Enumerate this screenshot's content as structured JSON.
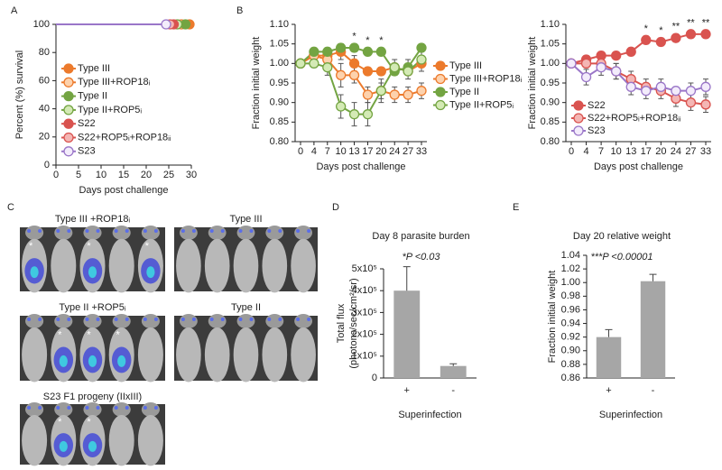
{
  "chart_data": [
    {
      "type": "line",
      "panel": "A",
      "ylabel": "Percent (%) survival",
      "xlabel": "Days post challenge",
      "xlim": [
        0,
        30
      ],
      "xticks": [
        0,
        5,
        10,
        15,
        20,
        25,
        30
      ],
      "ylim": [
        0,
        100
      ],
      "yticks": [
        0,
        20,
        40,
        60,
        80,
        100
      ],
      "markers": "last",
      "legend": "lower left",
      "series": [
        {
          "name": "Type III",
          "color": "#ec7a2c",
          "edgecolor": "#ec7a2c",
          "x": [
            0,
            29.6
          ],
          "values": [
            100,
            100
          ]
        },
        {
          "name": "Type III+ROP18ᵢ",
          "color": "#fdd2ad",
          "edgecolor": "#ec7a2c",
          "x": [
            0,
            27.8
          ],
          "values": [
            100,
            100
          ]
        },
        {
          "name": "Type II",
          "color": "#73a442",
          "edgecolor": "#73a442",
          "x": [
            0,
            28.7
          ],
          "values": [
            100,
            100
          ]
        },
        {
          "name": "Type II+ROP5ᵢ",
          "color": "#d4eab5",
          "edgecolor": "#73a442",
          "x": [
            0,
            26.9
          ],
          "values": [
            100,
            100
          ]
        },
        {
          "name": "S22",
          "color": "#d9534f",
          "edgecolor": "#d9534f",
          "x": [
            0,
            26.1
          ],
          "values": [
            100,
            100
          ]
        },
        {
          "name": "S22+ROP5ᵢ+ROP18ᵢᵢ",
          "color": "#f4b6b4",
          "edgecolor": "#d9534f",
          "x": [
            0,
            25.3
          ],
          "values": [
            100,
            100
          ]
        },
        {
          "name": "S23",
          "color": "#f3ecfb",
          "edgecolor": "#9a76c8",
          "x": [
            0,
            24.4
          ],
          "values": [
            100,
            100
          ]
        }
      ]
    },
    {
      "type": "line",
      "panel": "B",
      "ylabel": "Fraction initial weight",
      "xlabel": "Days post challenge",
      "categories": [
        "0",
        "4",
        "7",
        "10",
        "13",
        "17",
        "20",
        "24",
        "27",
        "33"
      ],
      "ylim": [
        0.8,
        1.1
      ],
      "yticks": [
        {
          "value": 0.8,
          "label": "0.80"
        },
        0.85,
        {
          "value": 0.9,
          "label": "0.90"
        },
        0.95,
        {
          "value": 1,
          "label": "1.00"
        },
        1.05,
        {
          "value": 1.1,
          "label": "1.10"
        }
      ],
      "markers": "all",
      "legend": "right",
      "annotations": [
        {
          "x": "13",
          "text": "*"
        },
        {
          "x": "17",
          "text": "*"
        },
        {
          "x": "20",
          "text": "*"
        }
      ],
      "series": [
        {
          "name": "Type III",
          "color": "#ec7a2c",
          "edgecolor": "#ec7a2c",
          "values": [
            1.0,
            1.02,
            1.02,
            1.03,
            1.0,
            0.98,
            0.98,
            0.99,
            0.98,
            1.0
          ],
          "errors": [
            0.01,
            0.01,
            0.01,
            0.02,
            0.02,
            0.01,
            0.01,
            0.01,
            0.01,
            0.02
          ]
        },
        {
          "name": "Type III+ROP18ᵢ",
          "color": "#fdd2ad",
          "edgecolor": "#ec7a2c",
          "values": [
            1.0,
            1.02,
            1.01,
            0.97,
            0.97,
            0.92,
            0.93,
            0.92,
            0.92,
            0.93
          ],
          "errors": [
            0.01,
            0.01,
            0.02,
            0.03,
            0.02,
            0.02,
            0.02,
            0.02,
            0.02,
            0.02
          ]
        },
        {
          "name": "Type II",
          "color": "#73a442",
          "edgecolor": "#73a442",
          "values": [
            1.0,
            1.03,
            1.03,
            1.04,
            1.04,
            1.03,
            1.03,
            0.98,
            0.99,
            1.04
          ],
          "errors": [
            0.01,
            0.01,
            0.01,
            0.01,
            0.01,
            0.01,
            0.01,
            0.01,
            0.02,
            0.01
          ]
        },
        {
          "name": "Type II+ROP5ᵢ",
          "color": "#d4eab5",
          "edgecolor": "#73a442",
          "values": [
            1.0,
            1.0,
            0.99,
            0.89,
            0.87,
            0.87,
            0.93,
            0.99,
            0.98,
            1.01
          ],
          "errors": [
            0.01,
            0.01,
            0.02,
            0.03,
            0.03,
            0.03,
            0.03,
            0.02,
            0.02,
            0.02
          ]
        }
      ]
    },
    {
      "type": "line",
      "ylabel": "Fraction initial weight",
      "xlabel": "Days post challenge",
      "categories": [
        "0",
        "4",
        "7",
        "10",
        "13",
        "17",
        "20",
        "24",
        "27",
        "33"
      ],
      "ylim": [
        0.8,
        1.1
      ],
      "yticks": [
        {
          "value": 0.8,
          "label": "0.80"
        },
        0.85,
        {
          "value": 0.9,
          "label": "0.90"
        },
        0.95,
        {
          "value": 1,
          "label": "1.00"
        },
        1.05,
        {
          "value": 1.1,
          "label": "1.10"
        }
      ],
      "markers": "all",
      "legend": "lower left",
      "annotations": [
        {
          "x": "17",
          "text": "*"
        },
        {
          "x": "20",
          "text": "*"
        },
        {
          "x": "24",
          "text": "**"
        },
        {
          "x": "27",
          "text": "**"
        },
        {
          "x": "33",
          "text": "**"
        }
      ],
      "series": [
        {
          "name": "S22",
          "color": "#d9534f",
          "edgecolor": "#d9534f",
          "values": [
            1.0,
            1.01,
            1.02,
            1.02,
            1.03,
            1.06,
            1.055,
            1.065,
            1.075,
            1.075
          ],
          "errors": [
            0.01,
            0.01,
            0.01,
            0.01,
            0.01,
            0.01,
            0.01,
            0.01,
            0.01,
            0.01
          ]
        },
        {
          "name": "S22+ROP5ᵢ+ROP18ᵢᵢ",
          "color": "#f4b6b4",
          "edgecolor": "#d9534f",
          "values": [
            1.0,
            1.0,
            1.0,
            0.98,
            0.96,
            0.94,
            0.93,
            0.91,
            0.9,
            0.895
          ],
          "errors": [
            0.01,
            0.01,
            0.02,
            0.02,
            0.02,
            0.02,
            0.02,
            0.02,
            0.02,
            0.02
          ]
        },
        {
          "name": "S23",
          "color": "#f3ecfb",
          "edgecolor": "#9a76c8",
          "values": [
            1.0,
            0.965,
            0.99,
            0.98,
            0.94,
            0.93,
            0.94,
            0.93,
            0.93,
            0.94
          ],
          "errors": [
            0.01,
            0.02,
            0.02,
            0.02,
            0.02,
            0.02,
            0.02,
            0.01,
            0.02,
            0.02
          ]
        }
      ]
    },
    {
      "type": "bar",
      "panel": "D",
      "title": "Day 8 parasite burden",
      "annotation": "*P <0.03",
      "ylabel": [
        "Total flux",
        "(photons/sec/cm²/sr)"
      ],
      "xlabel": "Superinfection",
      "categories": [
        "+",
        "-"
      ],
      "values": [
        400000,
        55000
      ],
      "errors": [
        110000,
        10000
      ],
      "color": "#a6a6a6",
      "ylim": [
        0,
        500000
      ],
      "yticks": [
        0,
        {
          "value": 100000,
          "label": "1x10⁵"
        },
        {
          "value": 200000,
          "label": "2x10⁵"
        },
        {
          "value": 300000,
          "label": "3x10⁵"
        },
        {
          "value": 400000,
          "label": "4x10⁵"
        },
        {
          "value": 500000,
          "label": "5x10⁵"
        }
      ]
    },
    {
      "type": "bar",
      "panel": "E",
      "title": "Day 20 relative weight",
      "annotation": "***P <0.00001",
      "ylabel": "Fraction initial weight",
      "xlabel": "Superinfection",
      "categories": [
        "+",
        "-"
      ],
      "values": [
        0.92,
        1.002
      ],
      "errors": [
        0.011,
        0.01
      ],
      "color": "#a6a6a6",
      "ylim": [
        0.86,
        1.04
      ],
      "yticks": [
        0.86,
        0.88,
        {
          "value": 0.9,
          "label": "0.90"
        },
        0.92,
        0.94,
        0.96,
        0.98,
        {
          "value": 1,
          "label": "1.00"
        },
        1.02,
        1.04
      ]
    }
  ],
  "panel_c": {
    "label": "C",
    "images": [
      {
        "title": "Type III +ROP18ᵢ",
        "marks": [
          "*",
          null,
          "*",
          null,
          "*"
        ]
      },
      {
        "title": "Type III",
        "marks": [
          null,
          null,
          null,
          null,
          null
        ]
      },
      {
        "title": "Type II +ROP5ᵢ",
        "marks": [
          null,
          "*",
          "*",
          "*",
          null
        ]
      },
      {
        "title": "Type II",
        "marks": [
          null,
          null,
          null,
          null,
          null
        ]
      },
      {
        "title": "S23 F1 progeny (IIxIII)",
        "marks": [
          null,
          "*",
          "*",
          null,
          null
        ]
      }
    ]
  }
}
